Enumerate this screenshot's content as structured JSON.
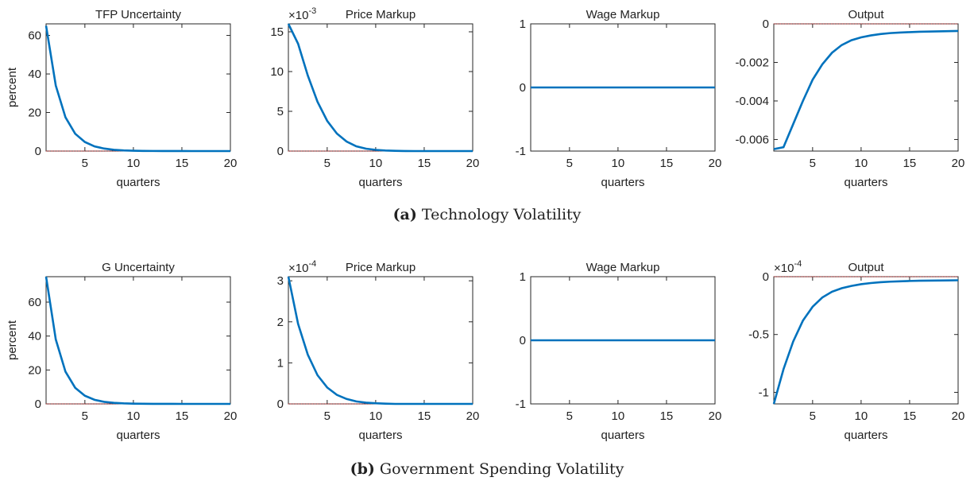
{
  "chart_data": [
    {
      "type": "line",
      "title": "TFP Uncertainty",
      "ylabel": "percent",
      "xlabel": "quarters",
      "x": [
        1,
        2,
        3,
        4,
        5,
        6,
        7,
        8,
        9,
        10,
        11,
        12,
        13,
        14,
        15,
        16,
        17,
        18,
        19,
        20
      ],
      "series": [
        {
          "color": "#0072bd",
          "values": [
            65,
            34,
            17.5,
            9,
            4.7,
            2.4,
            1.3,
            0.65,
            0.34,
            0.18,
            0.09,
            0.05,
            0.02,
            0.01,
            0.01,
            0,
            0,
            0,
            0,
            0
          ]
        }
      ],
      "xlim": [
        1,
        20
      ],
      "xticks": [
        5,
        10,
        15,
        20
      ],
      "ylim": [
        0,
        66
      ],
      "yticks": [
        0,
        20,
        40,
        60
      ],
      "zero_line_color": "#d62728"
    },
    {
      "type": "line",
      "title": "Price Markup",
      "ylabel_scale": "×10",
      "ylabel_scale_exp": "-3",
      "xlabel": "quarters",
      "x": [
        1,
        2,
        3,
        4,
        5,
        6,
        7,
        8,
        9,
        10,
        11,
        12,
        13,
        14,
        15,
        16,
        17,
        18,
        19,
        20
      ],
      "series": [
        {
          "color": "#0072bd",
          "values": [
            16,
            13.5,
            9.5,
            6.2,
            3.8,
            2.2,
            1.2,
            0.6,
            0.3,
            0.15,
            0.07,
            0.03,
            0.01,
            0,
            0,
            0,
            0,
            0,
            0,
            0
          ]
        }
      ],
      "xlim": [
        1,
        20
      ],
      "xticks": [
        5,
        10,
        15,
        20
      ],
      "ylim": [
        0,
        16
      ],
      "yticks": [
        0,
        5,
        10,
        15
      ],
      "zero_line_color": "#d62728"
    },
    {
      "type": "line",
      "title": "Wage Markup",
      "xlabel": "quarters",
      "x": [
        1,
        2,
        3,
        4,
        5,
        6,
        7,
        8,
        9,
        10,
        11,
        12,
        13,
        14,
        15,
        16,
        17,
        18,
        19,
        20
      ],
      "series": [
        {
          "color": "#0072bd",
          "values": [
            0,
            0,
            0,
            0,
            0,
            0,
            0,
            0,
            0,
            0,
            0,
            0,
            0,
            0,
            0,
            0,
            0,
            0,
            0,
            0
          ]
        }
      ],
      "xlim": [
        1,
        20
      ],
      "xticks": [
        5,
        10,
        15,
        20
      ],
      "ylim": [
        -1,
        1
      ],
      "yticks": [
        -1,
        0,
        1
      ],
      "zero_line_color": "#d62728"
    },
    {
      "type": "line",
      "title": "Output",
      "xlabel": "quarters",
      "x": [
        1,
        2,
        3,
        4,
        5,
        6,
        7,
        8,
        9,
        10,
        11,
        12,
        13,
        14,
        15,
        16,
        17,
        18,
        19,
        20
      ],
      "series": [
        {
          "color": "#0072bd",
          "values": [
            -0.0065,
            -0.0064,
            -0.0052,
            -0.004,
            -0.0029,
            -0.0021,
            -0.0015,
            -0.0011,
            -0.00085,
            -0.0007,
            -0.0006,
            -0.00053,
            -0.00048,
            -0.00045,
            -0.00043,
            -0.00041,
            -0.0004,
            -0.00039,
            -0.00038,
            -0.00037
          ]
        }
      ],
      "xlim": [
        1,
        20
      ],
      "xticks": [
        5,
        10,
        15,
        20
      ],
      "ylim": [
        -0.0066,
        0
      ],
      "yticks": [
        -0.006,
        -0.004,
        -0.002,
        0
      ],
      "zero_line_color": "#d62728"
    },
    {
      "type": "line",
      "title": "G Uncertainty",
      "ylabel": "percent",
      "xlabel": "quarters",
      "x": [
        1,
        2,
        3,
        4,
        5,
        6,
        7,
        8,
        9,
        10,
        11,
        12,
        13,
        14,
        15,
        16,
        17,
        18,
        19,
        20
      ],
      "series": [
        {
          "color": "#0072bd",
          "values": [
            75,
            38,
            19,
            9.5,
            4.8,
            2.4,
            1.2,
            0.6,
            0.3,
            0.15,
            0.08,
            0.04,
            0.02,
            0.01,
            0,
            0,
            0,
            0,
            0,
            0
          ]
        }
      ],
      "xlim": [
        1,
        20
      ],
      "xticks": [
        5,
        10,
        15,
        20
      ],
      "ylim": [
        0,
        75
      ],
      "yticks": [
        0,
        20,
        40,
        60
      ],
      "zero_line_color": "#d62728"
    },
    {
      "type": "line",
      "title": "Price Markup",
      "ylabel_scale": "×10",
      "ylabel_scale_exp": "-4",
      "xlabel": "quarters",
      "x": [
        1,
        2,
        3,
        4,
        5,
        6,
        7,
        8,
        9,
        10,
        11,
        12,
        13,
        14,
        15,
        16,
        17,
        18,
        19,
        20
      ],
      "series": [
        {
          "color": "#0072bd",
          "values": [
            3.1,
            1.95,
            1.2,
            0.7,
            0.4,
            0.22,
            0.12,
            0.06,
            0.03,
            0.015,
            0.007,
            0,
            0,
            0,
            0,
            0,
            0,
            0,
            0,
            0
          ]
        }
      ],
      "xlim": [
        1,
        20
      ],
      "xticks": [
        5,
        10,
        15,
        20
      ],
      "ylim": [
        0,
        3.1
      ],
      "yticks": [
        0,
        1,
        2,
        3
      ],
      "zero_line_color": "#d62728"
    },
    {
      "type": "line",
      "title": "Wage Markup",
      "xlabel": "quarters",
      "x": [
        1,
        2,
        3,
        4,
        5,
        6,
        7,
        8,
        9,
        10,
        11,
        12,
        13,
        14,
        15,
        16,
        17,
        18,
        19,
        20
      ],
      "series": [
        {
          "color": "#0072bd",
          "values": [
            0,
            0,
            0,
            0,
            0,
            0,
            0,
            0,
            0,
            0,
            0,
            0,
            0,
            0,
            0,
            0,
            0,
            0,
            0,
            0
          ]
        }
      ],
      "xlim": [
        1,
        20
      ],
      "xticks": [
        5,
        10,
        15,
        20
      ],
      "ylim": [
        -1,
        1
      ],
      "yticks": [
        -1,
        0,
        1
      ],
      "zero_line_color": "#d62728"
    },
    {
      "type": "line",
      "title": "Output",
      "ylabel_scale": "×10",
      "ylabel_scale_exp": "-4",
      "xlabel": "quarters",
      "x": [
        1,
        2,
        3,
        4,
        5,
        6,
        7,
        8,
        9,
        10,
        11,
        12,
        13,
        14,
        15,
        16,
        17,
        18,
        19,
        20
      ],
      "series": [
        {
          "color": "#0072bd",
          "values": [
            -1.1,
            -0.8,
            -0.56,
            -0.38,
            -0.26,
            -0.18,
            -0.13,
            -0.1,
            -0.08,
            -0.065,
            -0.055,
            -0.048,
            -0.043,
            -0.04,
            -0.037,
            -0.035,
            -0.034,
            -0.033,
            -0.032,
            -0.031
          ]
        }
      ],
      "xlim": [
        1,
        20
      ],
      "xticks": [
        5,
        10,
        15,
        20
      ],
      "ylim": [
        -1.1,
        0
      ],
      "yticks": [
        -1,
        -0.5,
        0
      ],
      "zero_line_color": "#d62728"
    }
  ],
  "captions": [
    {
      "label": "(a)",
      "text": "Technology Volatility"
    },
    {
      "label": "(b)",
      "text": "Government Spending Volatility"
    }
  ]
}
